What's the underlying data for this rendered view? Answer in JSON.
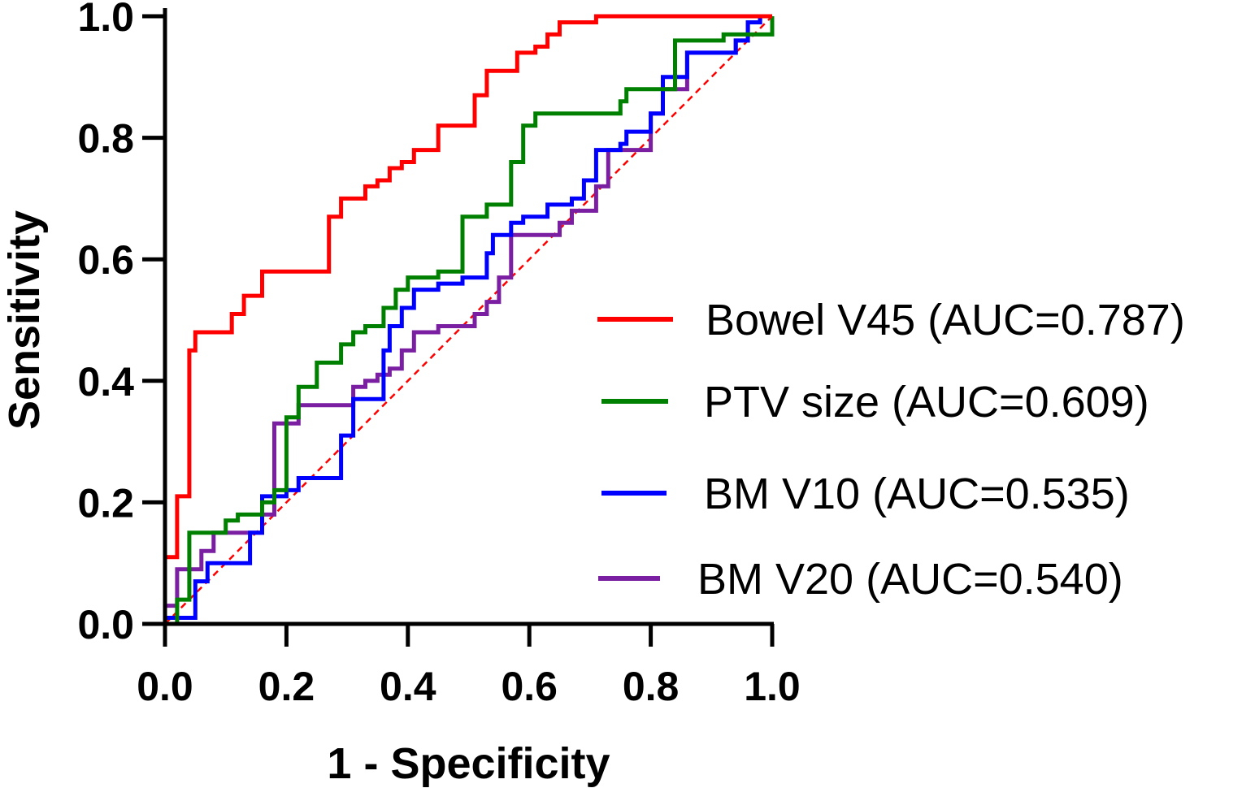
{
  "chart_data": {
    "type": "line",
    "title": "",
    "xlabel": "1 - Specificity",
    "ylabel": "Sensitivity",
    "xlim": [
      0,
      1
    ],
    "ylim": [
      0,
      1
    ],
    "xticks": [
      "0.0",
      "0.2",
      "0.4",
      "0.6",
      "0.8",
      "1.0"
    ],
    "yticks": [
      "0.0",
      "0.2",
      "0.4",
      "0.6",
      "0.8",
      "1.0"
    ],
    "grid": false,
    "legend_position": "right",
    "reference_line": {
      "x": [
        0,
        1
      ],
      "y": [
        0,
        1
      ],
      "color": "#ff0000",
      "style": "dashed"
    },
    "series": [
      {
        "name": "Bowel V45 (AUC=0.787)",
        "color": "#ff0000",
        "points": [
          [
            0,
            0
          ],
          [
            0,
            0.11
          ],
          [
            0.02,
            0.11
          ],
          [
            0.02,
            0.21
          ],
          [
            0.04,
            0.21
          ],
          [
            0.04,
            0.45
          ],
          [
            0.05,
            0.45
          ],
          [
            0.05,
            0.48
          ],
          [
            0.11,
            0.48
          ],
          [
            0.11,
            0.51
          ],
          [
            0.13,
            0.51
          ],
          [
            0.13,
            0.54
          ],
          [
            0.16,
            0.54
          ],
          [
            0.16,
            0.58
          ],
          [
            0.27,
            0.58
          ],
          [
            0.27,
            0.67
          ],
          [
            0.29,
            0.67
          ],
          [
            0.29,
            0.7
          ],
          [
            0.33,
            0.7
          ],
          [
            0.33,
            0.72
          ],
          [
            0.35,
            0.72
          ],
          [
            0.35,
            0.73
          ],
          [
            0.37,
            0.73
          ],
          [
            0.37,
            0.75
          ],
          [
            0.39,
            0.75
          ],
          [
            0.39,
            0.76
          ],
          [
            0.41,
            0.76
          ],
          [
            0.41,
            0.78
          ],
          [
            0.45,
            0.78
          ],
          [
            0.45,
            0.82
          ],
          [
            0.51,
            0.82
          ],
          [
            0.51,
            0.87
          ],
          [
            0.53,
            0.87
          ],
          [
            0.53,
            0.91
          ],
          [
            0.58,
            0.91
          ],
          [
            0.58,
            0.94
          ],
          [
            0.61,
            0.94
          ],
          [
            0.61,
            0.95
          ],
          [
            0.63,
            0.95
          ],
          [
            0.63,
            0.97
          ],
          [
            0.65,
            0.97
          ],
          [
            0.65,
            0.99
          ],
          [
            0.71,
            0.99
          ],
          [
            0.71,
            1.0
          ],
          [
            1.0,
            1.0
          ]
        ]
      },
      {
        "name": "PTV size (AUC=0.609)",
        "color": "#008000",
        "points": [
          [
            0.02,
            0
          ],
          [
            0.02,
            0.04
          ],
          [
            0.04,
            0.04
          ],
          [
            0.04,
            0.15
          ],
          [
            0.1,
            0.15
          ],
          [
            0.1,
            0.17
          ],
          [
            0.12,
            0.17
          ],
          [
            0.12,
            0.18
          ],
          [
            0.16,
            0.18
          ],
          [
            0.16,
            0.2
          ],
          [
            0.18,
            0.2
          ],
          [
            0.18,
            0.22
          ],
          [
            0.2,
            0.22
          ],
          [
            0.2,
            0.34
          ],
          [
            0.22,
            0.34
          ],
          [
            0.22,
            0.39
          ],
          [
            0.25,
            0.39
          ],
          [
            0.25,
            0.43
          ],
          [
            0.29,
            0.43
          ],
          [
            0.29,
            0.46
          ],
          [
            0.31,
            0.46
          ],
          [
            0.31,
            0.48
          ],
          [
            0.33,
            0.48
          ],
          [
            0.33,
            0.49
          ],
          [
            0.36,
            0.49
          ],
          [
            0.36,
            0.52
          ],
          [
            0.38,
            0.52
          ],
          [
            0.38,
            0.55
          ],
          [
            0.4,
            0.55
          ],
          [
            0.4,
            0.57
          ],
          [
            0.45,
            0.57
          ],
          [
            0.45,
            0.58
          ],
          [
            0.49,
            0.58
          ],
          [
            0.49,
            0.67
          ],
          [
            0.53,
            0.67
          ],
          [
            0.53,
            0.69
          ],
          [
            0.57,
            0.69
          ],
          [
            0.57,
            0.76
          ],
          [
            0.59,
            0.76
          ],
          [
            0.59,
            0.82
          ],
          [
            0.61,
            0.82
          ],
          [
            0.61,
            0.84
          ],
          [
            0.75,
            0.84
          ],
          [
            0.75,
            0.86
          ],
          [
            0.76,
            0.86
          ],
          [
            0.76,
            0.88
          ],
          [
            0.84,
            0.88
          ],
          [
            0.84,
            0.96
          ],
          [
            0.92,
            0.96
          ],
          [
            0.92,
            0.97
          ],
          [
            1.0,
            0.97
          ],
          [
            1.0,
            1.0
          ]
        ]
      },
      {
        "name": "BM V10 (AUC=0.535)",
        "color": "#0000ff",
        "points": [
          [
            0,
            0
          ],
          [
            0,
            0.01
          ],
          [
            0.05,
            0.01
          ],
          [
            0.05,
            0.07
          ],
          [
            0.07,
            0.07
          ],
          [
            0.07,
            0.1
          ],
          [
            0.14,
            0.1
          ],
          [
            0.14,
            0.15
          ],
          [
            0.16,
            0.15
          ],
          [
            0.16,
            0.21
          ],
          [
            0.2,
            0.21
          ],
          [
            0.2,
            0.22
          ],
          [
            0.22,
            0.22
          ],
          [
            0.22,
            0.24
          ],
          [
            0.29,
            0.24
          ],
          [
            0.29,
            0.31
          ],
          [
            0.31,
            0.31
          ],
          [
            0.31,
            0.37
          ],
          [
            0.36,
            0.37
          ],
          [
            0.36,
            0.45
          ],
          [
            0.37,
            0.45
          ],
          [
            0.37,
            0.49
          ],
          [
            0.39,
            0.49
          ],
          [
            0.39,
            0.52
          ],
          [
            0.41,
            0.52
          ],
          [
            0.41,
            0.55
          ],
          [
            0.45,
            0.55
          ],
          [
            0.45,
            0.56
          ],
          [
            0.49,
            0.56
          ],
          [
            0.49,
            0.57
          ],
          [
            0.53,
            0.57
          ],
          [
            0.53,
            0.61
          ],
          [
            0.54,
            0.61
          ],
          [
            0.54,
            0.64
          ],
          [
            0.57,
            0.64
          ],
          [
            0.57,
            0.66
          ],
          [
            0.59,
            0.66
          ],
          [
            0.59,
            0.67
          ],
          [
            0.63,
            0.67
          ],
          [
            0.63,
            0.69
          ],
          [
            0.67,
            0.69
          ],
          [
            0.67,
            0.7
          ],
          [
            0.69,
            0.7
          ],
          [
            0.69,
            0.73
          ],
          [
            0.71,
            0.73
          ],
          [
            0.71,
            0.78
          ],
          [
            0.75,
            0.78
          ],
          [
            0.75,
            0.79
          ],
          [
            0.76,
            0.79
          ],
          [
            0.76,
            0.81
          ],
          [
            0.8,
            0.81
          ],
          [
            0.8,
            0.84
          ],
          [
            0.82,
            0.84
          ],
          [
            0.82,
            0.9
          ],
          [
            0.86,
            0.9
          ],
          [
            0.86,
            0.94
          ],
          [
            0.94,
            0.94
          ],
          [
            0.94,
            0.96
          ],
          [
            0.96,
            0.96
          ],
          [
            0.96,
            0.99
          ],
          [
            0.98,
            0.99
          ],
          [
            0.98,
            1.0
          ]
        ]
      },
      {
        "name": "BM V20 (AUC=0.540)",
        "color": "#7b1fa2",
        "points": [
          [
            0,
            0
          ],
          [
            0,
            0.03
          ],
          [
            0.02,
            0.03
          ],
          [
            0.02,
            0.09
          ],
          [
            0.06,
            0.09
          ],
          [
            0.06,
            0.12
          ],
          [
            0.08,
            0.12
          ],
          [
            0.08,
            0.15
          ],
          [
            0.16,
            0.15
          ],
          [
            0.16,
            0.18
          ],
          [
            0.18,
            0.18
          ],
          [
            0.18,
            0.33
          ],
          [
            0.22,
            0.33
          ],
          [
            0.22,
            0.36
          ],
          [
            0.31,
            0.36
          ],
          [
            0.31,
            0.39
          ],
          [
            0.33,
            0.39
          ],
          [
            0.33,
            0.4
          ],
          [
            0.35,
            0.4
          ],
          [
            0.35,
            0.41
          ],
          [
            0.37,
            0.41
          ],
          [
            0.37,
            0.42
          ],
          [
            0.39,
            0.42
          ],
          [
            0.39,
            0.45
          ],
          [
            0.41,
            0.45
          ],
          [
            0.41,
            0.48
          ],
          [
            0.45,
            0.48
          ],
          [
            0.45,
            0.49
          ],
          [
            0.51,
            0.49
          ],
          [
            0.51,
            0.51
          ],
          [
            0.53,
            0.51
          ],
          [
            0.53,
            0.53
          ],
          [
            0.55,
            0.53
          ],
          [
            0.55,
            0.57
          ],
          [
            0.57,
            0.57
          ],
          [
            0.57,
            0.64
          ],
          [
            0.65,
            0.64
          ],
          [
            0.65,
            0.66
          ],
          [
            0.67,
            0.66
          ],
          [
            0.67,
            0.68
          ],
          [
            0.71,
            0.68
          ],
          [
            0.71,
            0.72
          ],
          [
            0.73,
            0.72
          ],
          [
            0.73,
            0.78
          ],
          [
            0.8,
            0.78
          ],
          [
            0.8,
            0.84
          ],
          [
            0.82,
            0.84
          ],
          [
            0.82,
            0.88
          ],
          [
            0.86,
            0.88
          ],
          [
            0.86,
            0.94
          ],
          [
            0.94,
            0.94
          ],
          [
            0.94,
            0.96
          ],
          [
            0.96,
            0.96
          ],
          [
            0.96,
            0.99
          ],
          [
            0.98,
            0.99
          ],
          [
            0.98,
            1.0
          ]
        ]
      }
    ]
  }
}
